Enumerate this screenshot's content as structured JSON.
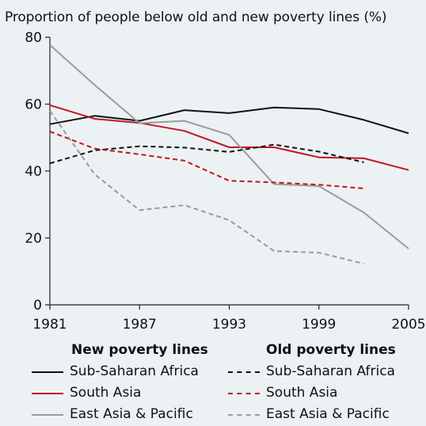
{
  "chart_data": {
    "type": "line",
    "title": "Proportion of people below old and new poverty lines (%)",
    "xlabel": "",
    "ylabel": "",
    "x_ticks": [
      "1981",
      "1987",
      "1993",
      "1999",
      "2005"
    ],
    "y_ticks": [
      "0",
      "20",
      "40",
      "60",
      "80"
    ],
    "xlim": [
      1981,
      2005
    ],
    "ylim": [
      0,
      80
    ],
    "grid": false,
    "legend_groups": [
      {
        "heading": "New poverty lines",
        "series_indices": [
          0,
          1,
          2
        ]
      },
      {
        "heading": "Old poverty lines",
        "series_indices": [
          3,
          4,
          5
        ]
      }
    ],
    "series": [
      {
        "name": "Sub-Saharan Africa",
        "color": "#111111",
        "style": "solid",
        "points": [
          [
            1981,
            54
          ],
          [
            1984,
            56.5
          ],
          [
            1987,
            55
          ],
          [
            1990,
            58.2
          ],
          [
            1993,
            57.3
          ],
          [
            1996,
            59
          ],
          [
            1999,
            58.5
          ],
          [
            2002,
            55.3
          ],
          [
            2005,
            51.3
          ]
        ]
      },
      {
        "name": "South Asia",
        "color": "#c0161c",
        "style": "solid",
        "points": [
          [
            1981,
            59.7
          ],
          [
            1984,
            55.6
          ],
          [
            1987,
            54.4
          ],
          [
            1990,
            52
          ],
          [
            1993,
            47.1
          ],
          [
            1996,
            47.1
          ],
          [
            1999,
            44.1
          ],
          [
            2002,
            43.8
          ],
          [
            2005,
            40.3
          ]
        ]
      },
      {
        "name": "East Asia & Pacific",
        "color": "#9b9b9b",
        "style": "solid",
        "points": [
          [
            1981,
            77.7
          ],
          [
            1984,
            65.7
          ],
          [
            1987,
            54.3
          ],
          [
            1990,
            55
          ],
          [
            1993,
            50.8
          ],
          [
            1996,
            36.1
          ],
          [
            1999,
            35.5
          ],
          [
            2002,
            27.6
          ],
          [
            2005,
            16.8
          ]
        ]
      },
      {
        "name": "Sub-Saharan Africa",
        "color": "#111111",
        "style": "dashed",
        "points": [
          [
            1981,
            42.3
          ],
          [
            1984,
            46.2
          ],
          [
            1987,
            47.4
          ],
          [
            1990,
            47
          ],
          [
            1993,
            45.7
          ],
          [
            1996,
            47.9
          ],
          [
            1999,
            45.8
          ],
          [
            2002,
            42.6
          ]
        ]
      },
      {
        "name": "South Asia",
        "color": "#c0161c",
        "style": "dashed",
        "points": [
          [
            1981,
            51.8
          ],
          [
            1984,
            46.7
          ],
          [
            1987,
            45
          ],
          [
            1990,
            43.1
          ],
          [
            1993,
            37.1
          ],
          [
            1996,
            36.6
          ],
          [
            1999,
            35.9
          ],
          [
            2002,
            34.8
          ]
        ]
      },
      {
        "name": "East Asia & Pacific",
        "color": "#9b9b9b",
        "style": "dashed",
        "points": [
          [
            1981,
            58
          ],
          [
            1984,
            39
          ],
          [
            1987,
            28.3
          ],
          [
            1990,
            29.8
          ],
          [
            1993,
            25.3
          ],
          [
            1996,
            16.1
          ],
          [
            1999,
            15.6
          ],
          [
            2002,
            12.3
          ]
        ]
      }
    ]
  }
}
